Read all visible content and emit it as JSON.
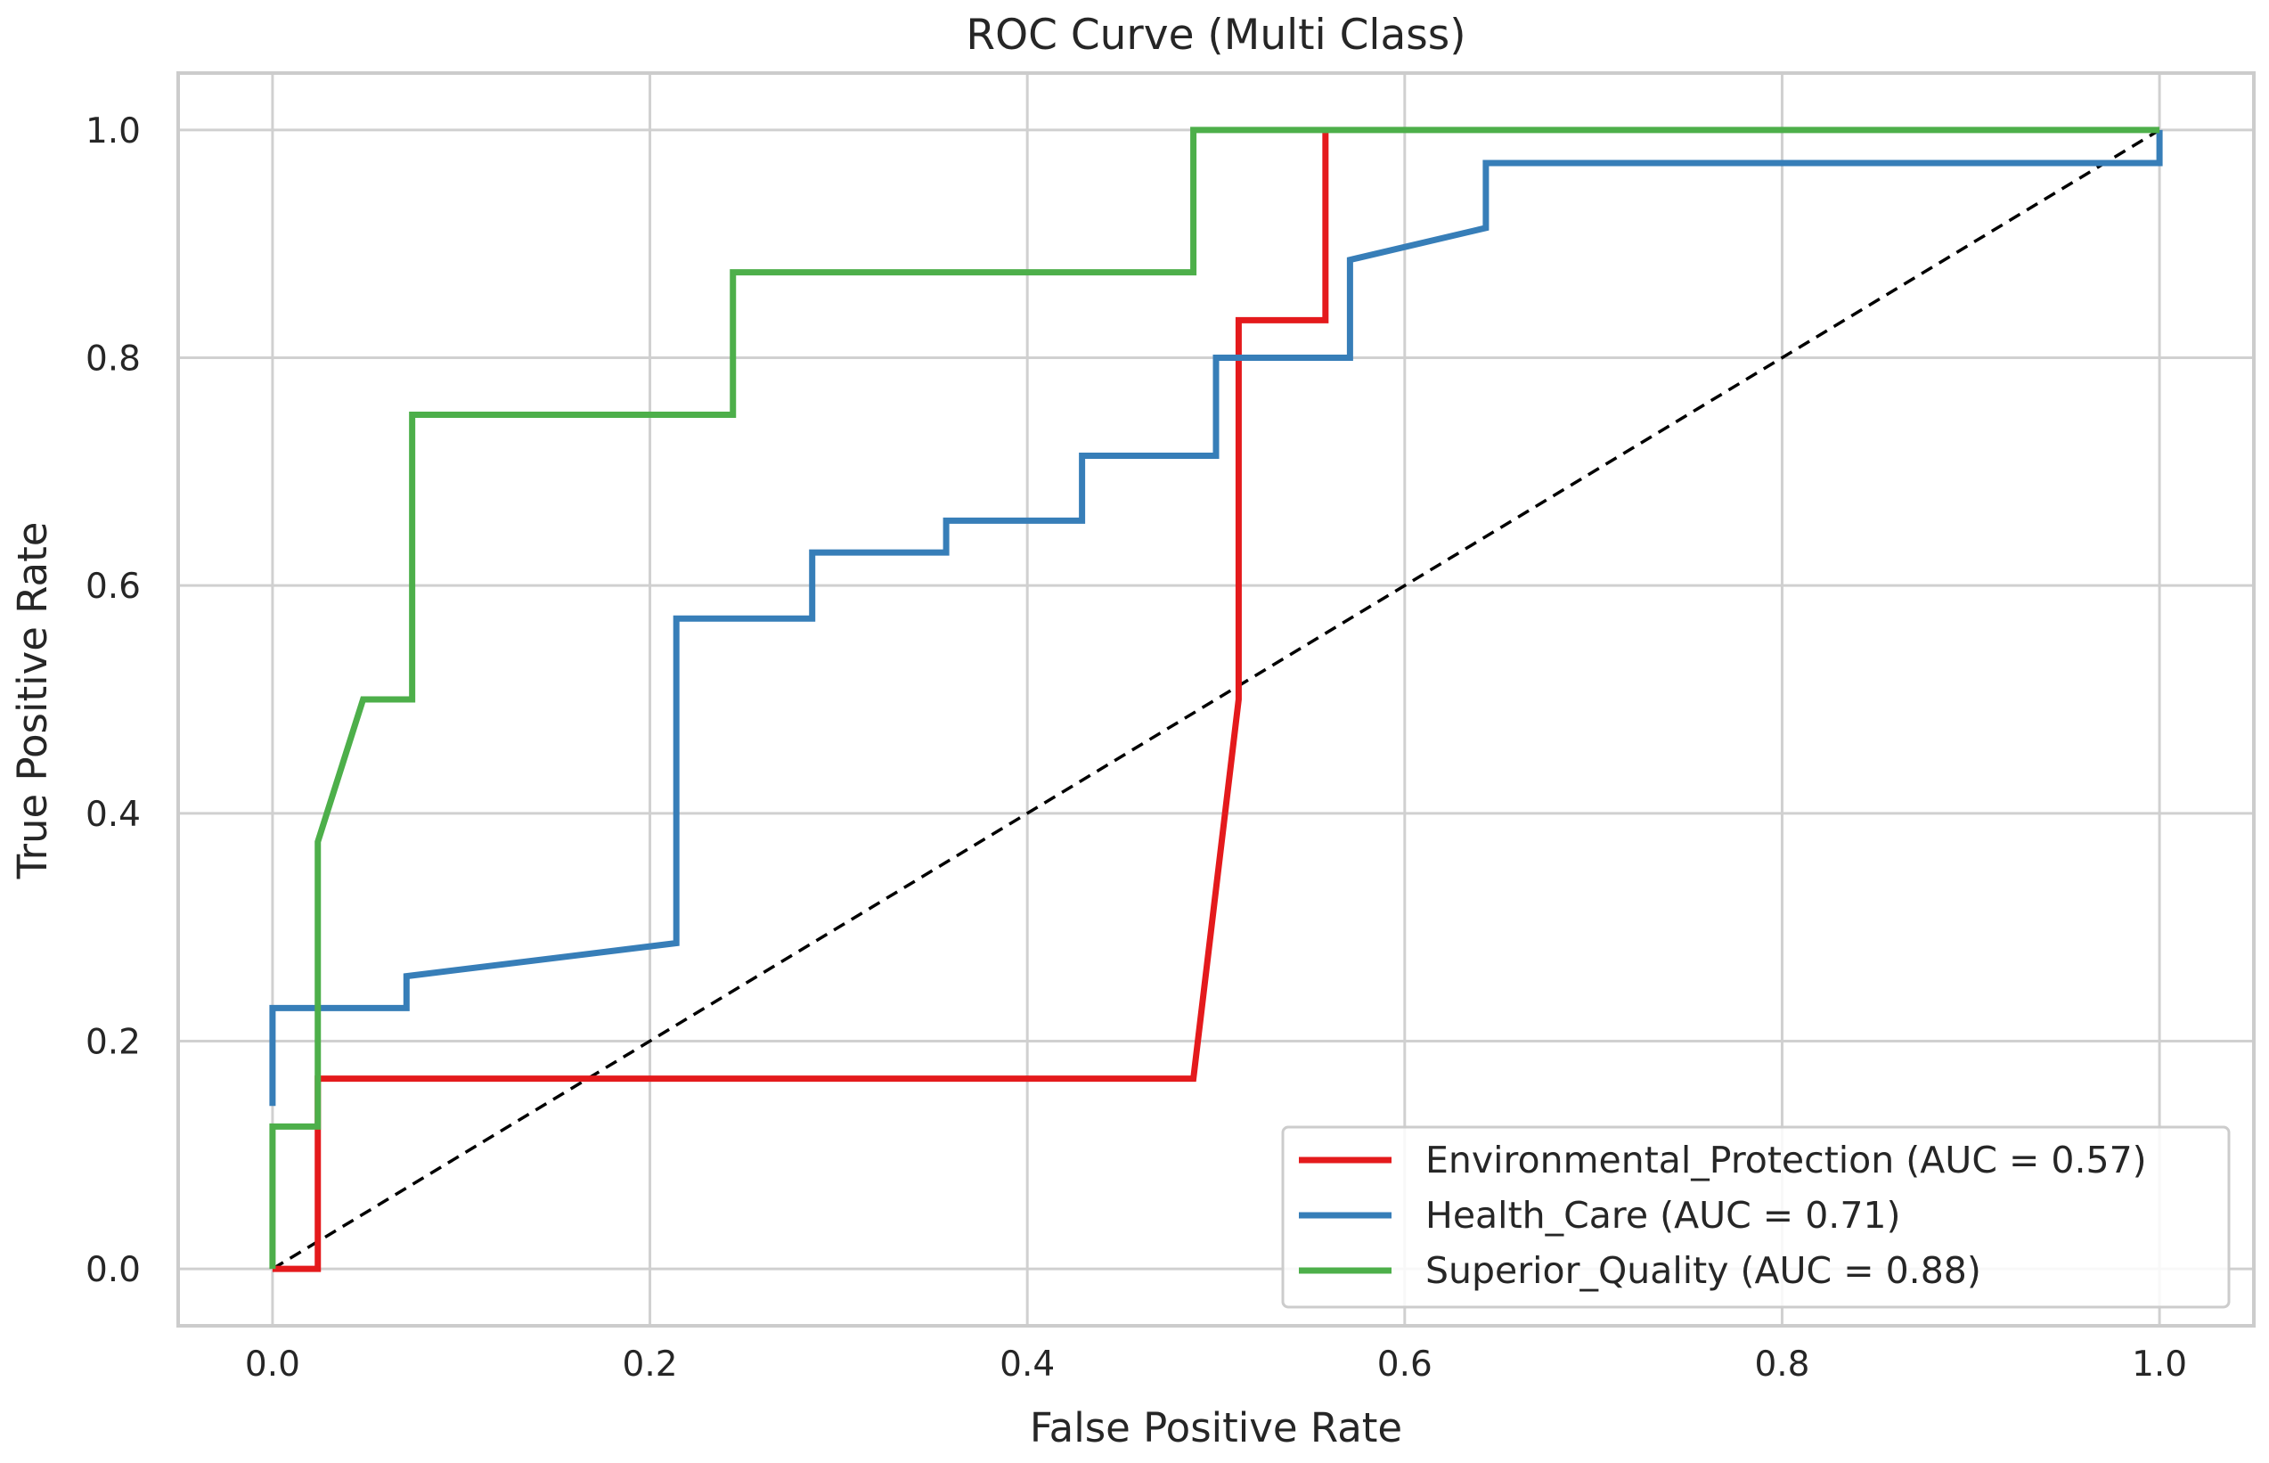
{
  "chart_data": {
    "type": "line",
    "title": "ROC Curve (Multi Class)",
    "xlabel": "False Positive Rate",
    "ylabel": "True Positive Rate",
    "xlim": [
      -0.05,
      1.05
    ],
    "ylim": [
      -0.05,
      1.05
    ],
    "xticks": [
      0.0,
      0.2,
      0.4,
      0.6,
      0.8,
      1.0
    ],
    "yticks": [
      0.0,
      0.2,
      0.4,
      0.6,
      0.8,
      1.0
    ],
    "xtick_labels": [
      "0.0",
      "0.2",
      "0.4",
      "0.6",
      "0.8",
      "1.0"
    ],
    "ytick_labels": [
      "0.0",
      "0.2",
      "0.4",
      "0.6",
      "0.8",
      "1.0"
    ],
    "grid": true,
    "legend_position": "lower-right",
    "series": [
      {
        "name": "Environmental_Protection",
        "label": "Environmental_Protection (AUC = 0.57)",
        "auc": 0.57,
        "color": "#e41a1c",
        "x": [
          0.0,
          0.024,
          0.024,
          0.488,
          0.512,
          0.512,
          0.558,
          0.558
        ],
        "y": [
          0.0,
          0.0,
          0.167,
          0.167,
          0.5,
          0.833,
          0.833,
          1.0
        ]
      },
      {
        "name": "Health_Care",
        "label": "Health_Care (AUC = 0.71)",
        "auc": 0.71,
        "color": "#377eb8",
        "x": [
          0.0,
          0.0,
          0.071,
          0.071,
          0.214,
          0.214,
          0.286,
          0.286,
          0.357,
          0.357,
          0.429,
          0.429,
          0.5,
          0.5,
          0.571,
          0.571,
          0.643,
          0.643,
          1.0,
          1.0
        ],
        "y": [
          0.143,
          0.229,
          0.229,
          0.257,
          0.286,
          0.571,
          0.571,
          0.629,
          0.629,
          0.657,
          0.657,
          0.714,
          0.714,
          0.8,
          0.8,
          0.886,
          0.914,
          0.971,
          0.971,
          1.0
        ]
      },
      {
        "name": "Superior_Quality",
        "label": "Superior_Quality (AUC = 0.88)",
        "auc": 0.88,
        "color": "#4daf4a",
        "x": [
          0.0,
          0.0,
          0.024,
          0.024,
          0.048,
          0.074,
          0.074,
          0.244,
          0.244,
          0.488,
          0.488,
          1.0
        ],
        "y": [
          0.0,
          0.125,
          0.125,
          0.375,
          0.5,
          0.5,
          0.75,
          0.75,
          0.875,
          0.875,
          1.0,
          1.0
        ]
      }
    ],
    "reference_line": {
      "x": [
        0.0,
        1.0
      ],
      "y": [
        0.0,
        1.0
      ],
      "style": "dashed",
      "color": "#000000"
    }
  }
}
